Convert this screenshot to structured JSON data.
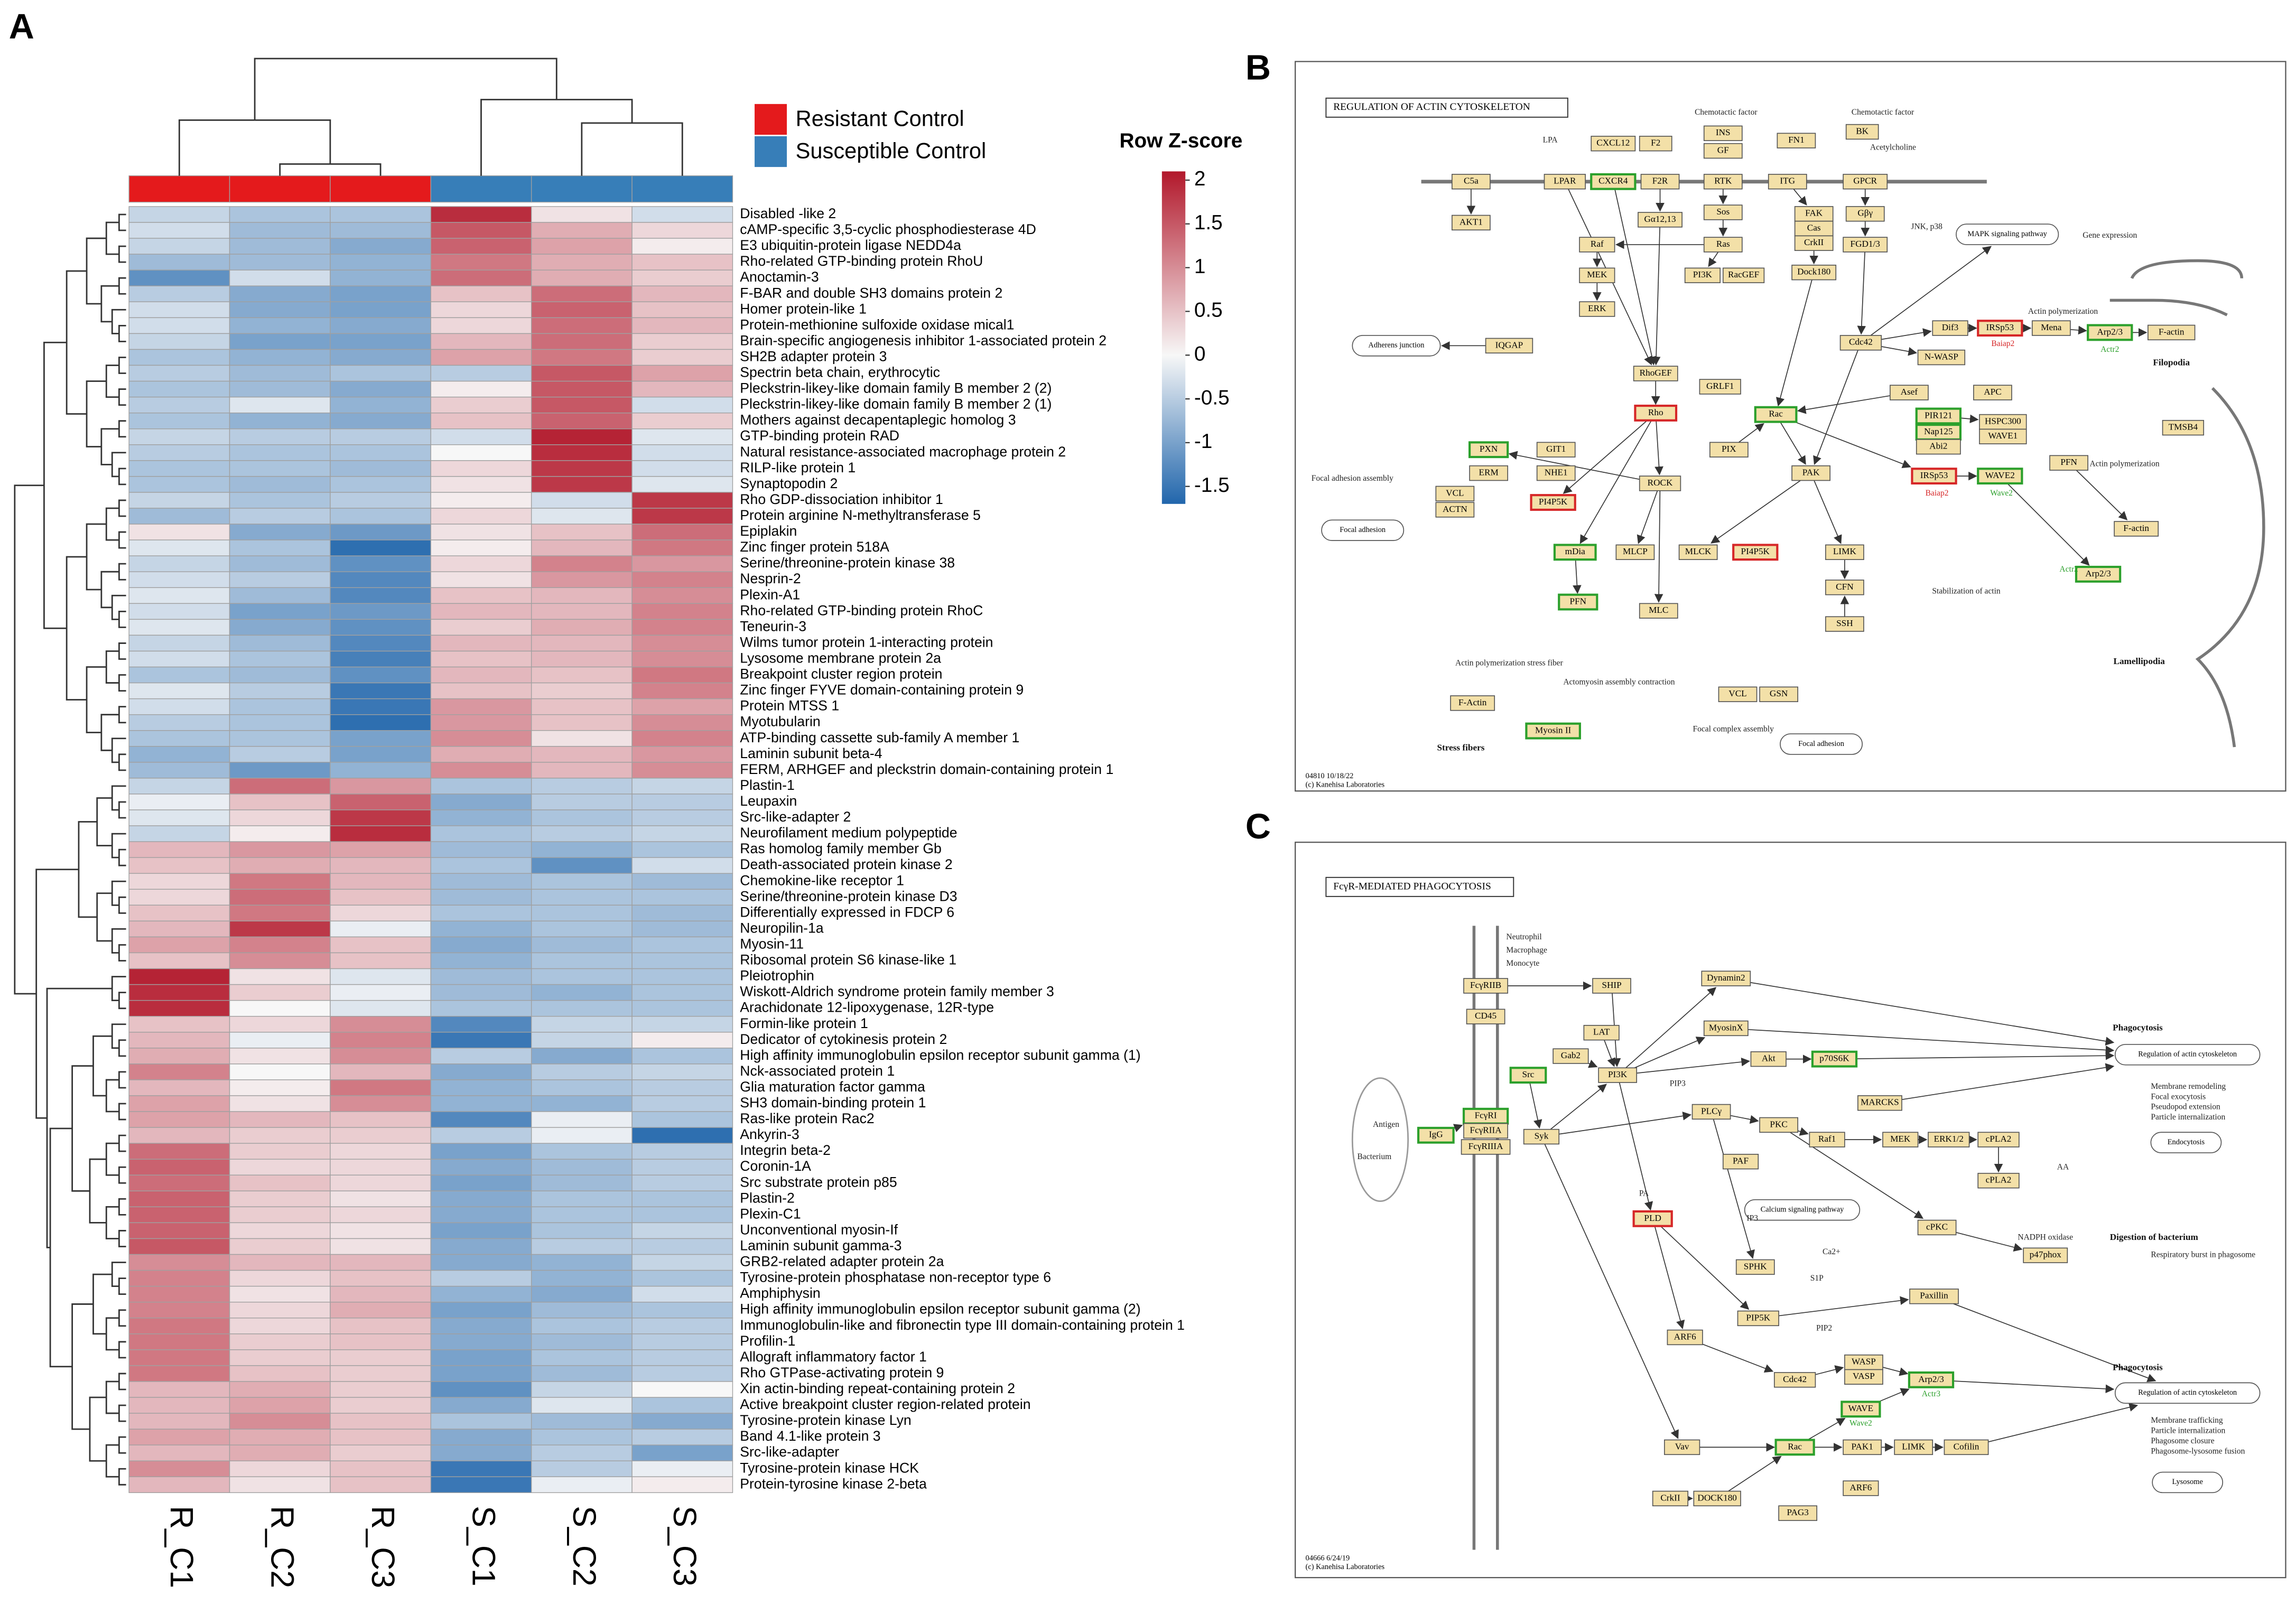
{
  "panel_a": {
    "label": "A",
    "heatmap": {
      "type": "heatmap",
      "columns": [
        "R_C1",
        "R_C2",
        "R_C3",
        "S_C1",
        "S_C2",
        "S_C3"
      ],
      "column_colors": [
        "#e41a1c",
        "#e41a1c",
        "#e41a1c",
        "#377eb8",
        "#377eb8",
        "#377eb8"
      ],
      "legend": [
        {
          "name": "Resistant Control",
          "color": "#e41a1c"
        },
        {
          "name": "Susceptible Control",
          "color": "#377eb8"
        }
      ],
      "rows": [
        "Disabled -like 2",
        "cAMP-specific 3,5-cyclic phosphodiesterase 4D",
        "E3 ubiquitin-protein ligase NEDD4a",
        "Rho-related GTP-binding protein RhoU",
        "Anoctamin-3",
        "F-BAR and double SH3 domains protein 2",
        "Homer protein-like 1",
        "Protein-methionine sulfoxide oxidase mical1",
        "Brain-specific angiogenesis inhibitor 1-associated protein 2",
        "SH2B adapter protein 3",
        "Spectrin beta chain, erythrocytic",
        "Pleckstrin-likey-like domain family B member 2 (2)",
        "Pleckstrin-likey-like domain family B member 2 (1)",
        "Mothers against decapentaplegic homolog 3",
        "GTP-binding protein RAD",
        "Natural resistance-associated macrophage protein 2",
        "RILP-like protein 1",
        "Synaptopodin 2",
        "Rho GDP-dissociation inhibitor 1",
        "Protein arginine N-methyltransferase 5",
        "Epiplakin",
        "Zinc finger protein 518A",
        "Serine/threonine-protein kinase 38",
        "Nesprin-2",
        "Plexin-A1",
        "Rho-related GTP-binding protein RhoC",
        "Teneurin-3",
        "Wilms tumor protein 1-interacting protein",
        "Lysosome membrane protein 2a",
        "Breakpoint cluster region protein",
        "Zinc finger FYVE domain-containing protein 9",
        "Protein MTSS 1",
        "Myotubularin",
        "ATP-binding cassette sub-family A member 1",
        "Laminin subunit beta-4",
        "FERM, ARHGEF and pleckstrin domain-containing protein 1",
        "Plastin-1",
        "Leupaxin",
        "Src-like-adapter 2",
        "Neurofilament medium polypeptide",
        "Ras homolog family member Gb",
        "Death-associated protein kinase 2",
        "Chemokine-like receptor 1",
        "Serine/threonine-protein kinase D3",
        "Differentially expressed in FDCP 6",
        "Neuropilin-1a",
        "Myosin-11",
        "Ribosomal protein S6 kinase-like 1",
        "Pleiotrophin",
        "Wiskott-Aldrich syndrome protein family member 3",
        "Arachidonate 12-lipoxygenase, 12R-type",
        "Formin-like protein 1",
        "Dedicator of cytokinesis protein 2",
        "High affinity immunoglobulin epsilon receptor subunit gamma (1)",
        "Nck-associated protein 1",
        "Glia maturation factor gamma",
        "SH3 domain-binding protein 1",
        "Ras-like protein Rac2",
        "Ankyrin-3",
        "Integrin beta-2",
        "Coronin-1A",
        "Src substrate protein p85",
        "Plastin-2",
        "Plexin-C1",
        "Unconventional myosin-If",
        "Laminin subunit gamma-3",
        "GRB2-related adapter protein 2a",
        "Tyrosine-protein phosphatase non-receptor type 6",
        "Amphiphysin",
        "High affinity immunoglobulin epsilon receptor subunit gamma (2)",
        "Immunoglobulin-like and fibronectin type III domain-containing protein 1",
        "Profilin-1",
        "Allograft inflammatory factor 1",
        "Rho GTPase-activating protein 9",
        "Xin actin-binding repeat-containing protein 2",
        "Active breakpoint cluster region-related protein",
        "Tyrosine-protein kinase Lyn",
        "Band 4.1-like protein 3",
        "Src-like-adapter",
        "Tyrosine-protein kinase HCK",
        "Protein-tyrosine kinase 2-beta"
      ],
      "values": [
        [
          -0.4,
          -0.6,
          -0.6,
          1.9,
          0.2,
          -0.3
        ],
        [
          -0.3,
          -0.7,
          -0.7,
          1.5,
          0.7,
          0.3
        ],
        [
          -0.4,
          -0.7,
          -0.9,
          1.4,
          0.8,
          0.1
        ],
        [
          -0.7,
          -0.7,
          -0.8,
          1.2,
          0.7,
          0.5
        ],
        [
          -1.2,
          -0.3,
          -0.8,
          1.3,
          0.7,
          0.4
        ],
        [
          -0.5,
          -0.9,
          -1.0,
          0.5,
          1.3,
          0.6
        ],
        [
          -0.3,
          -0.9,
          -1.0,
          0.3,
          1.4,
          0.5
        ],
        [
          -0.3,
          -0.8,
          -0.9,
          0.3,
          1.3,
          0.6
        ],
        [
          -0.4,
          -1.0,
          -1.0,
          0.6,
          1.3,
          0.4
        ],
        [
          -0.6,
          -0.8,
          -0.9,
          0.8,
          1.2,
          0.4
        ],
        [
          -0.5,
          -0.7,
          -0.6,
          -0.5,
          1.5,
          0.8
        ],
        [
          -0.6,
          -0.7,
          -0.9,
          0.1,
          1.5,
          0.6
        ],
        [
          -0.5,
          -0.2,
          -0.8,
          0.4,
          1.5,
          -0.3
        ],
        [
          -0.6,
          -0.8,
          -0.9,
          0.5,
          1.4,
          0.4
        ],
        [
          -0.4,
          -0.5,
          -0.5,
          -0.3,
          2.0,
          -0.2
        ],
        [
          -0.5,
          -0.6,
          -0.6,
          0.0,
          1.9,
          -0.3
        ],
        [
          -0.6,
          -0.6,
          -0.7,
          0.3,
          1.8,
          -0.3
        ],
        [
          -0.6,
          -0.7,
          -0.6,
          0.2,
          1.8,
          -0.2
        ],
        [
          -0.4,
          -0.6,
          -0.5,
          0.1,
          -0.3,
          1.8
        ],
        [
          -0.7,
          -0.5,
          -0.6,
          0.3,
          -0.2,
          1.8
        ],
        [
          0.2,
          -0.9,
          -1.1,
          0.2,
          0.5,
          1.3
        ],
        [
          -0.2,
          -0.6,
          -1.6,
          0.1,
          0.6,
          1.2
        ],
        [
          -0.4,
          -0.7,
          -1.2,
          0.3,
          1.1,
          0.9
        ],
        [
          -0.3,
          -0.5,
          -1.3,
          0.2,
          0.9,
          1.1
        ],
        [
          -0.2,
          -0.7,
          -1.3,
          0.5,
          0.6,
          1.0
        ],
        [
          -0.3,
          -1.0,
          -1.1,
          0.6,
          0.6,
          1.1
        ],
        [
          -0.2,
          -0.9,
          -1.2,
          0.4,
          0.7,
          1.1
        ],
        [
          -0.4,
          -0.7,
          -1.3,
          0.6,
          0.6,
          1.0
        ],
        [
          -0.3,
          -0.6,
          -1.4,
          0.5,
          0.6,
          1.0
        ],
        [
          -0.6,
          -0.7,
          -1.2,
          0.6,
          0.5,
          1.2
        ],
        [
          -0.2,
          -0.5,
          -1.5,
          0.5,
          0.4,
          1.1
        ],
        [
          -0.3,
          -0.6,
          -1.5,
          0.9,
          0.5,
          0.8
        ],
        [
          -0.5,
          -0.6,
          -1.6,
          0.9,
          0.5,
          1.0
        ],
        [
          -0.6,
          -0.6,
          -1.0,
          1.0,
          0.2,
          1.1
        ],
        [
          -0.8,
          -0.5,
          -1.0,
          0.7,
          0.6,
          0.9
        ],
        [
          -0.7,
          -1.1,
          -0.8,
          1.0,
          0.6,
          1.0
        ],
        [
          -0.4,
          1.3,
          0.9,
          -0.6,
          -0.5,
          -0.4
        ],
        [
          -0.1,
          0.5,
          1.4,
          -0.9,
          -0.5,
          -0.5
        ],
        [
          -0.2,
          0.3,
          1.8,
          -0.8,
          -0.6,
          -0.5
        ],
        [
          -0.4,
          0.1,
          1.9,
          -0.6,
          -0.5,
          -0.4
        ],
        [
          0.6,
          0.9,
          0.8,
          -0.7,
          -0.8,
          -0.6
        ],
        [
          0.5,
          0.7,
          0.6,
          -0.6,
          -1.2,
          -0.3
        ],
        [
          0.3,
          1.2,
          0.6,
          -0.7,
          -0.6,
          -0.7
        ],
        [
          0.3,
          1.3,
          0.5,
          -0.7,
          -0.6,
          -0.6
        ],
        [
          0.5,
          1.2,
          0.3,
          -0.6,
          -0.6,
          -0.7
        ],
        [
          0.6,
          1.8,
          -0.1,
          -0.8,
          -0.6,
          -0.7
        ],
        [
          0.8,
          1.1,
          0.5,
          -0.9,
          -0.7,
          -0.6
        ],
        [
          0.5,
          1.0,
          0.5,
          -0.8,
          -0.6,
          -0.6
        ],
        [
          2.0,
          0.2,
          -0.2,
          -0.7,
          -0.6,
          -0.6
        ],
        [
          1.9,
          0.4,
          -0.1,
          -0.7,
          -0.8,
          -0.6
        ],
        [
          1.9,
          0.0,
          -0.2,
          -0.6,
          -0.6,
          -0.6
        ],
        [
          0.5,
          0.3,
          1.0,
          -1.3,
          -0.4,
          -0.4
        ],
        [
          0.6,
          -0.1,
          1.1,
          -1.5,
          -0.4,
          0.1
        ],
        [
          0.7,
          0.2,
          1.0,
          -0.5,
          -0.9,
          -0.6
        ],
        [
          1.1,
          0.0,
          0.6,
          -0.9,
          -0.5,
          -0.4
        ],
        [
          0.6,
          0.1,
          1.2,
          -0.8,
          -0.6,
          -0.5
        ],
        [
          0.8,
          0.2,
          1.0,
          -0.8,
          -0.8,
          -0.5
        ],
        [
          0.8,
          0.6,
          0.5,
          -1.3,
          -0.1,
          -0.6
        ],
        [
          0.6,
          0.4,
          0.4,
          -0.5,
          -0.1,
          -1.6
        ],
        [
          1.3,
          0.4,
          0.3,
          -1.0,
          -0.6,
          -0.5
        ],
        [
          1.4,
          0.3,
          0.3,
          -0.9,
          -0.7,
          -0.5
        ],
        [
          1.3,
          0.5,
          0.3,
          -1.0,
          -0.7,
          -0.5
        ],
        [
          1.4,
          0.4,
          0.2,
          -0.9,
          -0.6,
          -0.6
        ],
        [
          1.4,
          0.4,
          0.3,
          -0.9,
          -0.6,
          -0.6
        ],
        [
          1.4,
          0.3,
          0.2,
          -1.0,
          -0.6,
          -0.4
        ],
        [
          1.5,
          0.4,
          0.2,
          -0.9,
          -0.5,
          -0.5
        ],
        [
          1.0,
          0.6,
          0.6,
          -0.9,
          -0.8,
          -0.4
        ],
        [
          1.1,
          0.3,
          0.5,
          -0.5,
          -0.8,
          -0.6
        ],
        [
          1.1,
          0.2,
          0.6,
          -0.8,
          -0.9,
          -0.3
        ],
        [
          1.1,
          0.3,
          0.7,
          -1.0,
          -0.7,
          -0.6
        ],
        [
          1.2,
          0.3,
          0.5,
          -0.9,
          -0.6,
          -0.5
        ],
        [
          1.2,
          0.4,
          0.5,
          -0.9,
          -0.7,
          -0.5
        ],
        [
          1.2,
          0.4,
          0.4,
          -1.0,
          -0.6,
          -0.5
        ],
        [
          1.2,
          0.5,
          0.4,
          -1.0,
          -0.7,
          -0.5
        ],
        [
          0.6,
          0.7,
          0.4,
          -1.2,
          -0.4,
          0.0
        ],
        [
          0.6,
          0.8,
          0.4,
          -0.9,
          -0.2,
          -0.6
        ],
        [
          0.6,
          1.0,
          0.5,
          -0.6,
          -0.7,
          -0.9
        ],
        [
          0.8,
          0.7,
          0.5,
          -0.9,
          -0.6,
          -0.5
        ],
        [
          0.6,
          0.7,
          0.4,
          -0.9,
          -0.5,
          -1.0
        ],
        [
          1.0,
          0.3,
          0.5,
          -1.5,
          -0.5,
          -0.1
        ],
        [
          0.6,
          0.2,
          0.5,
          -1.5,
          -0.1,
          0.1
        ]
      ],
      "colorbar": {
        "title": "Row Z-score",
        "zlim": [
          -1.7,
          2.1
        ],
        "ticks": [
          2,
          1.5,
          1,
          0.5,
          0,
          -0.5,
          -1,
          -1.5
        ],
        "colors": [
          "#2166ac",
          "#f7f7f7",
          "#b2182b"
        ]
      }
    }
  },
  "panel_b": {
    "label": "B",
    "title": "REGULATION OF ACTIN CYTOSKELETON",
    "nodes": [
      "C5a",
      "LPAR",
      "CXCR4",
      "F2R",
      "RTK",
      "ITG",
      "GPCR",
      "CXCL12",
      "F2",
      "INS",
      "GF",
      "FN1",
      "BK",
      "AKT1",
      "Gα12,13",
      "Sos",
      "Ras",
      "FAK",
      "Cas",
      "CrkII",
      "Gβγ",
      "FGD1/3",
      "Raf",
      "MEK",
      "ERK",
      "PI3K",
      "RacGEF",
      "Dock180",
      "IQGAP",
      "RhoGEF",
      "Rho",
      "GRLF1",
      "Rac",
      "Cdc42",
      "PIX",
      "ROCK",
      "PAK",
      "IRSp53",
      "WAVE2",
      "PIR121",
      "Nap125",
      "Abi2",
      "HSPC300",
      "WAVE1",
      "Asef",
      "APC",
      "N-WASP",
      "Dif3",
      "IRSp53",
      "Mena",
      "Arp2/3",
      "F-actin",
      "PFN",
      "TMSB4",
      "Arp2/3",
      "F-actin",
      "PXN",
      "GIT1",
      "ERM",
      "NHE1",
      "VCL",
      "ACTN",
      "PI4P5K",
      "mDia",
      "MLCP",
      "MLCK",
      "PI4P5K",
      "LIMK",
      "CFN",
      "SSH",
      "MLC",
      "PFN",
      "VCL",
      "GSN",
      "F-Actin",
      "Myosin II",
      "Adherens junction",
      "Focal adhesion",
      "MAPK signaling pathway",
      "Focal adhesion"
    ],
    "texts": [
      "Chemotactic factor",
      "Chemotactic factor",
      "LPA",
      "Acetylcholine",
      "JNK, p38",
      "Gene expression",
      "Actin polymerization",
      "Filopodia",
      "Baiap2",
      "Actr2",
      "Baiap2",
      "Wave2",
      "Actin polymerization",
      "Actr2",
      "Lamellipodia",
      "Focal adhesion assembly",
      "Actin polymerization stress fiber",
      "Actomyosin assembly contraction",
      "Stabilization of actin",
      "Focal complex assembly",
      "Stress fibers"
    ],
    "footer": [
      "04810 10/18/22",
      "(c) Kanehisa Laboratories"
    ]
  },
  "panel_c": {
    "label": "C",
    "title": "FcγR-MEDIATED PHAGOCYTOSIS",
    "nodes": [
      "FcγRIIB",
      "CD45",
      "SHIP",
      "Dynamin2",
      "MyosinX",
      "LAT",
      "Gab2",
      "Src",
      "PI3K",
      "Akt",
      "p70S6K",
      "FcγRI",
      "FcγRIIA",
      "FcγRIIIA",
      "IgG",
      "Syk",
      "PLCγ",
      "PKC",
      "MARCKS",
      "Raf1",
      "MEK",
      "ERK1/2",
      "cPLA2",
      "PAF",
      "PLD",
      "SPHK",
      "cPKC",
      "cPLA2",
      "p47phox",
      "PIP5K",
      "ARF6",
      "Paxillin",
      "Cdc42",
      "WASP",
      "VASP",
      "Arp2/3",
      "WAVE",
      "Vav",
      "Rac",
      "PAK1",
      "LIMK",
      "Cofilin",
      "CrkII",
      "DOCK180",
      "ARF6",
      "PAG3",
      "Calcium signaling pathway",
      "Regulation of actin cytoskeleton",
      "Endocytosis",
      "Regulation of actin cytoskeleton",
      "Lysosome"
    ],
    "texts": [
      "Neutrophil",
      "Macrophage",
      "Monocyte",
      "Antigen",
      "Bacterium",
      "Phagocytosis",
      "Membrane remodeling",
      "Focal exocytosis",
      "Pseudopod extension",
      "Particle internalization",
      "Digestion of bacterium",
      "NADPH oxidase",
      "Respiratory burst in phagosome",
      "Phagocytosis",
      "Membrane trafficking",
      "Particle internalization",
      "Phagosome closure",
      "Phagosome-lysosome fusion",
      "Actr3",
      "Wave2",
      "AA",
      "PIP3",
      "PA",
      "IP3",
      "Ca2+",
      "S1P",
      "PIP2"
    ],
    "footer": [
      "04666 6/24/19",
      "(c) Kanehisa Laboratories"
    ]
  }
}
